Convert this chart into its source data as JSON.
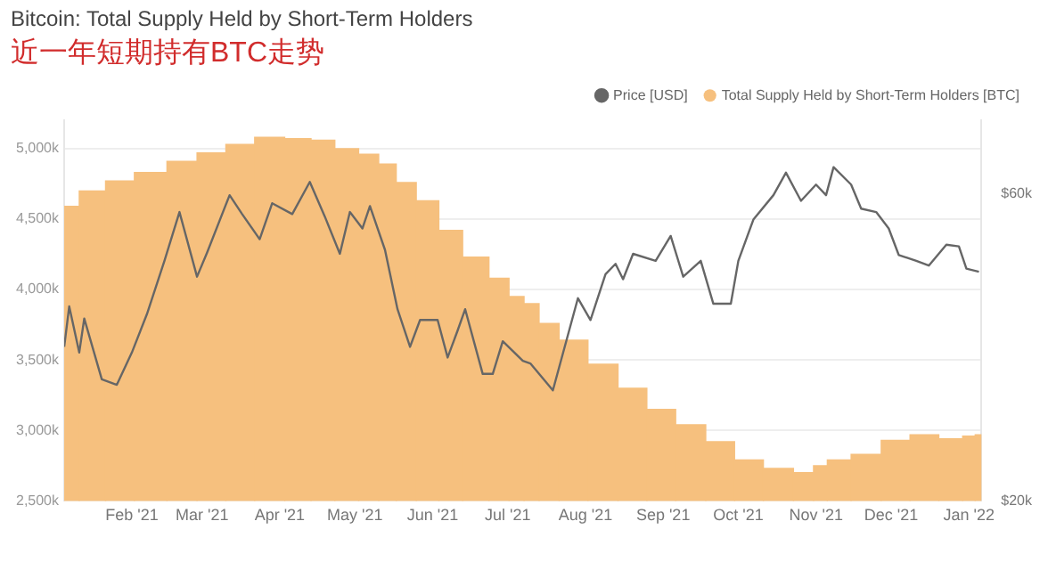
{
  "chart_data": {
    "type": "bar",
    "title": "Bitcoin: Total Supply Held by Short-Term Holders",
    "subtitle": "近一年短期持有BTC走势",
    "xlim": [
      "2021-01-05",
      "2022-01-06"
    ],
    "xticks": [
      {
        "value": "2021-02-01",
        "label": "Feb '21"
      },
      {
        "value": "2021-03-01",
        "label": "Mar '21"
      },
      {
        "value": "2021-04-01",
        "label": "Apr '21"
      },
      {
        "value": "2021-05-01",
        "label": "May '21"
      },
      {
        "value": "2021-06-01",
        "label": "Jun '21"
      },
      {
        "value": "2021-07-01",
        "label": "Jul '21"
      },
      {
        "value": "2021-08-01",
        "label": "Aug '21"
      },
      {
        "value": "2021-09-01",
        "label": "Sep '21"
      },
      {
        "value": "2021-10-01",
        "label": "Oct '21"
      },
      {
        "value": "2021-11-01",
        "label": "Nov '21"
      },
      {
        "value": "2021-12-01",
        "label": "Dec '21"
      },
      {
        "value": "2022-01-01",
        "label": "Jan '22"
      }
    ],
    "ylim": [
      2500000,
      5200000
    ],
    "yticks": [
      {
        "value": 2500000,
        "label": "2,500k"
      },
      {
        "value": 3000000,
        "label": "3,000k"
      },
      {
        "value": 3500000,
        "label": "3,500k"
      },
      {
        "value": 4000000,
        "label": "4,000k"
      },
      {
        "value": 4500000,
        "label": "4,500k"
      },
      {
        "value": 5000000,
        "label": "5,000k"
      }
    ],
    "y2lim": [
      20000,
      78000
    ],
    "y2ticks": [
      {
        "value": 20000,
        "label": "$20k"
      },
      {
        "value": 60000,
        "label": "$60k"
      }
    ],
    "log": "y2",
    "grid": "y",
    "legend": "top right",
    "marker": "none",
    "series": [
      {
        "name": "Total Supply Held by Short-Term Holders [BTC]",
        "color": "#f6c07e",
        "x": [
          "2021-01-05",
          "2021-01-17",
          "2021-01-26",
          "2021-02-09",
          "2021-02-21",
          "2021-03-05",
          "2021-03-16",
          "2021-03-28",
          "2021-04-09",
          "2021-04-18",
          "2021-04-28",
          "2021-05-07",
          "2021-05-14",
          "2021-05-21",
          "2021-05-30",
          "2021-06-08",
          "2021-06-18",
          "2021-06-29",
          "2021-07-04",
          "2021-07-11",
          "2021-07-16",
          "2021-07-27",
          "2021-08-08",
          "2021-08-20",
          "2021-08-31",
          "2021-09-12",
          "2021-09-24",
          "2021-10-05",
          "2021-10-17",
          "2021-10-29",
          "2021-11-02",
          "2021-11-09",
          "2021-11-21",
          "2021-12-03",
          "2021-12-14",
          "2021-12-26",
          "2022-01-02",
          "2022-01-05"
        ],
        "values": [
          4590000,
          4700000,
          4770000,
          4830000,
          4910000,
          4970000,
          5030000,
          5080000,
          5070000,
          5060000,
          5000000,
          4960000,
          4890000,
          4760000,
          4630000,
          4420000,
          4230000,
          4080000,
          3950000,
          3900000,
          3760000,
          3640000,
          3470000,
          3300000,
          3150000,
          3040000,
          2920000,
          2790000,
          2730000,
          2700000,
          2750000,
          2790000,
          2830000,
          2930000,
          2970000,
          2940000,
          2960000,
          2970000
        ]
      },
      {
        "name": "Price [USD]",
        "type": "line",
        "axis": "y2",
        "color": "#666666",
        "x": [
          "2021-01-05",
          "2021-01-07",
          "2021-01-11",
          "2021-01-13",
          "2021-01-20",
          "2021-01-26",
          "2021-02-01",
          "2021-02-07",
          "2021-02-14",
          "2021-02-20",
          "2021-02-27",
          "2021-03-03",
          "2021-03-12",
          "2021-03-17",
          "2021-03-24",
          "2021-03-29",
          "2021-04-06",
          "2021-04-13",
          "2021-04-19",
          "2021-04-25",
          "2021-04-29",
          "2021-05-04",
          "2021-05-07",
          "2021-05-13",
          "2021-05-18",
          "2021-05-23",
          "2021-05-27",
          "2021-06-03",
          "2021-06-07",
          "2021-06-11",
          "2021-06-14",
          "2021-06-21",
          "2021-06-25",
          "2021-06-29",
          "2021-07-07",
          "2021-07-10",
          "2021-07-19",
          "2021-07-29",
          "2021-08-03",
          "2021-08-09",
          "2021-08-13",
          "2021-08-16",
          "2021-08-20",
          "2021-08-29",
          "2021-09-04",
          "2021-09-09",
          "2021-09-16",
          "2021-09-21",
          "2021-09-28",
          "2021-10-01",
          "2021-10-07",
          "2021-10-15",
          "2021-10-20",
          "2021-10-26",
          "2021-11-01",
          "2021-11-05",
          "2021-11-08",
          "2021-11-15",
          "2021-11-19",
          "2021-11-25",
          "2021-11-30",
          "2021-12-04",
          "2021-12-11",
          "2021-12-16",
          "2021-12-23",
          "2021-12-28",
          "2021-12-31",
          "2022-01-05"
        ],
        "values": [
          34700,
          40100,
          34000,
          38400,
          30900,
          30300,
          34000,
          39000,
          47200,
          56200,
          44600,
          48600,
          59700,
          55800,
          51000,
          58000,
          55800,
          62600,
          55300,
          48400,
          56200,
          53000,
          57400,
          49100,
          39700,
          34700,
          38200,
          38200,
          33400,
          36800,
          39700,
          31500,
          31500,
          35400,
          33000,
          32700,
          29700,
          41300,
          38200,
          45000,
          46700,
          44200,
          48400,
          47200,
          51600,
          44600,
          47200,
          40500,
          40500,
          47200,
          54700,
          59700,
          64700,
          58500,
          62000,
          59700,
          66000,
          62000,
          56900,
          56200,
          53000,
          48200,
          47200,
          46400,
          50000,
          49700,
          45900,
          45400
        ]
      }
    ]
  }
}
